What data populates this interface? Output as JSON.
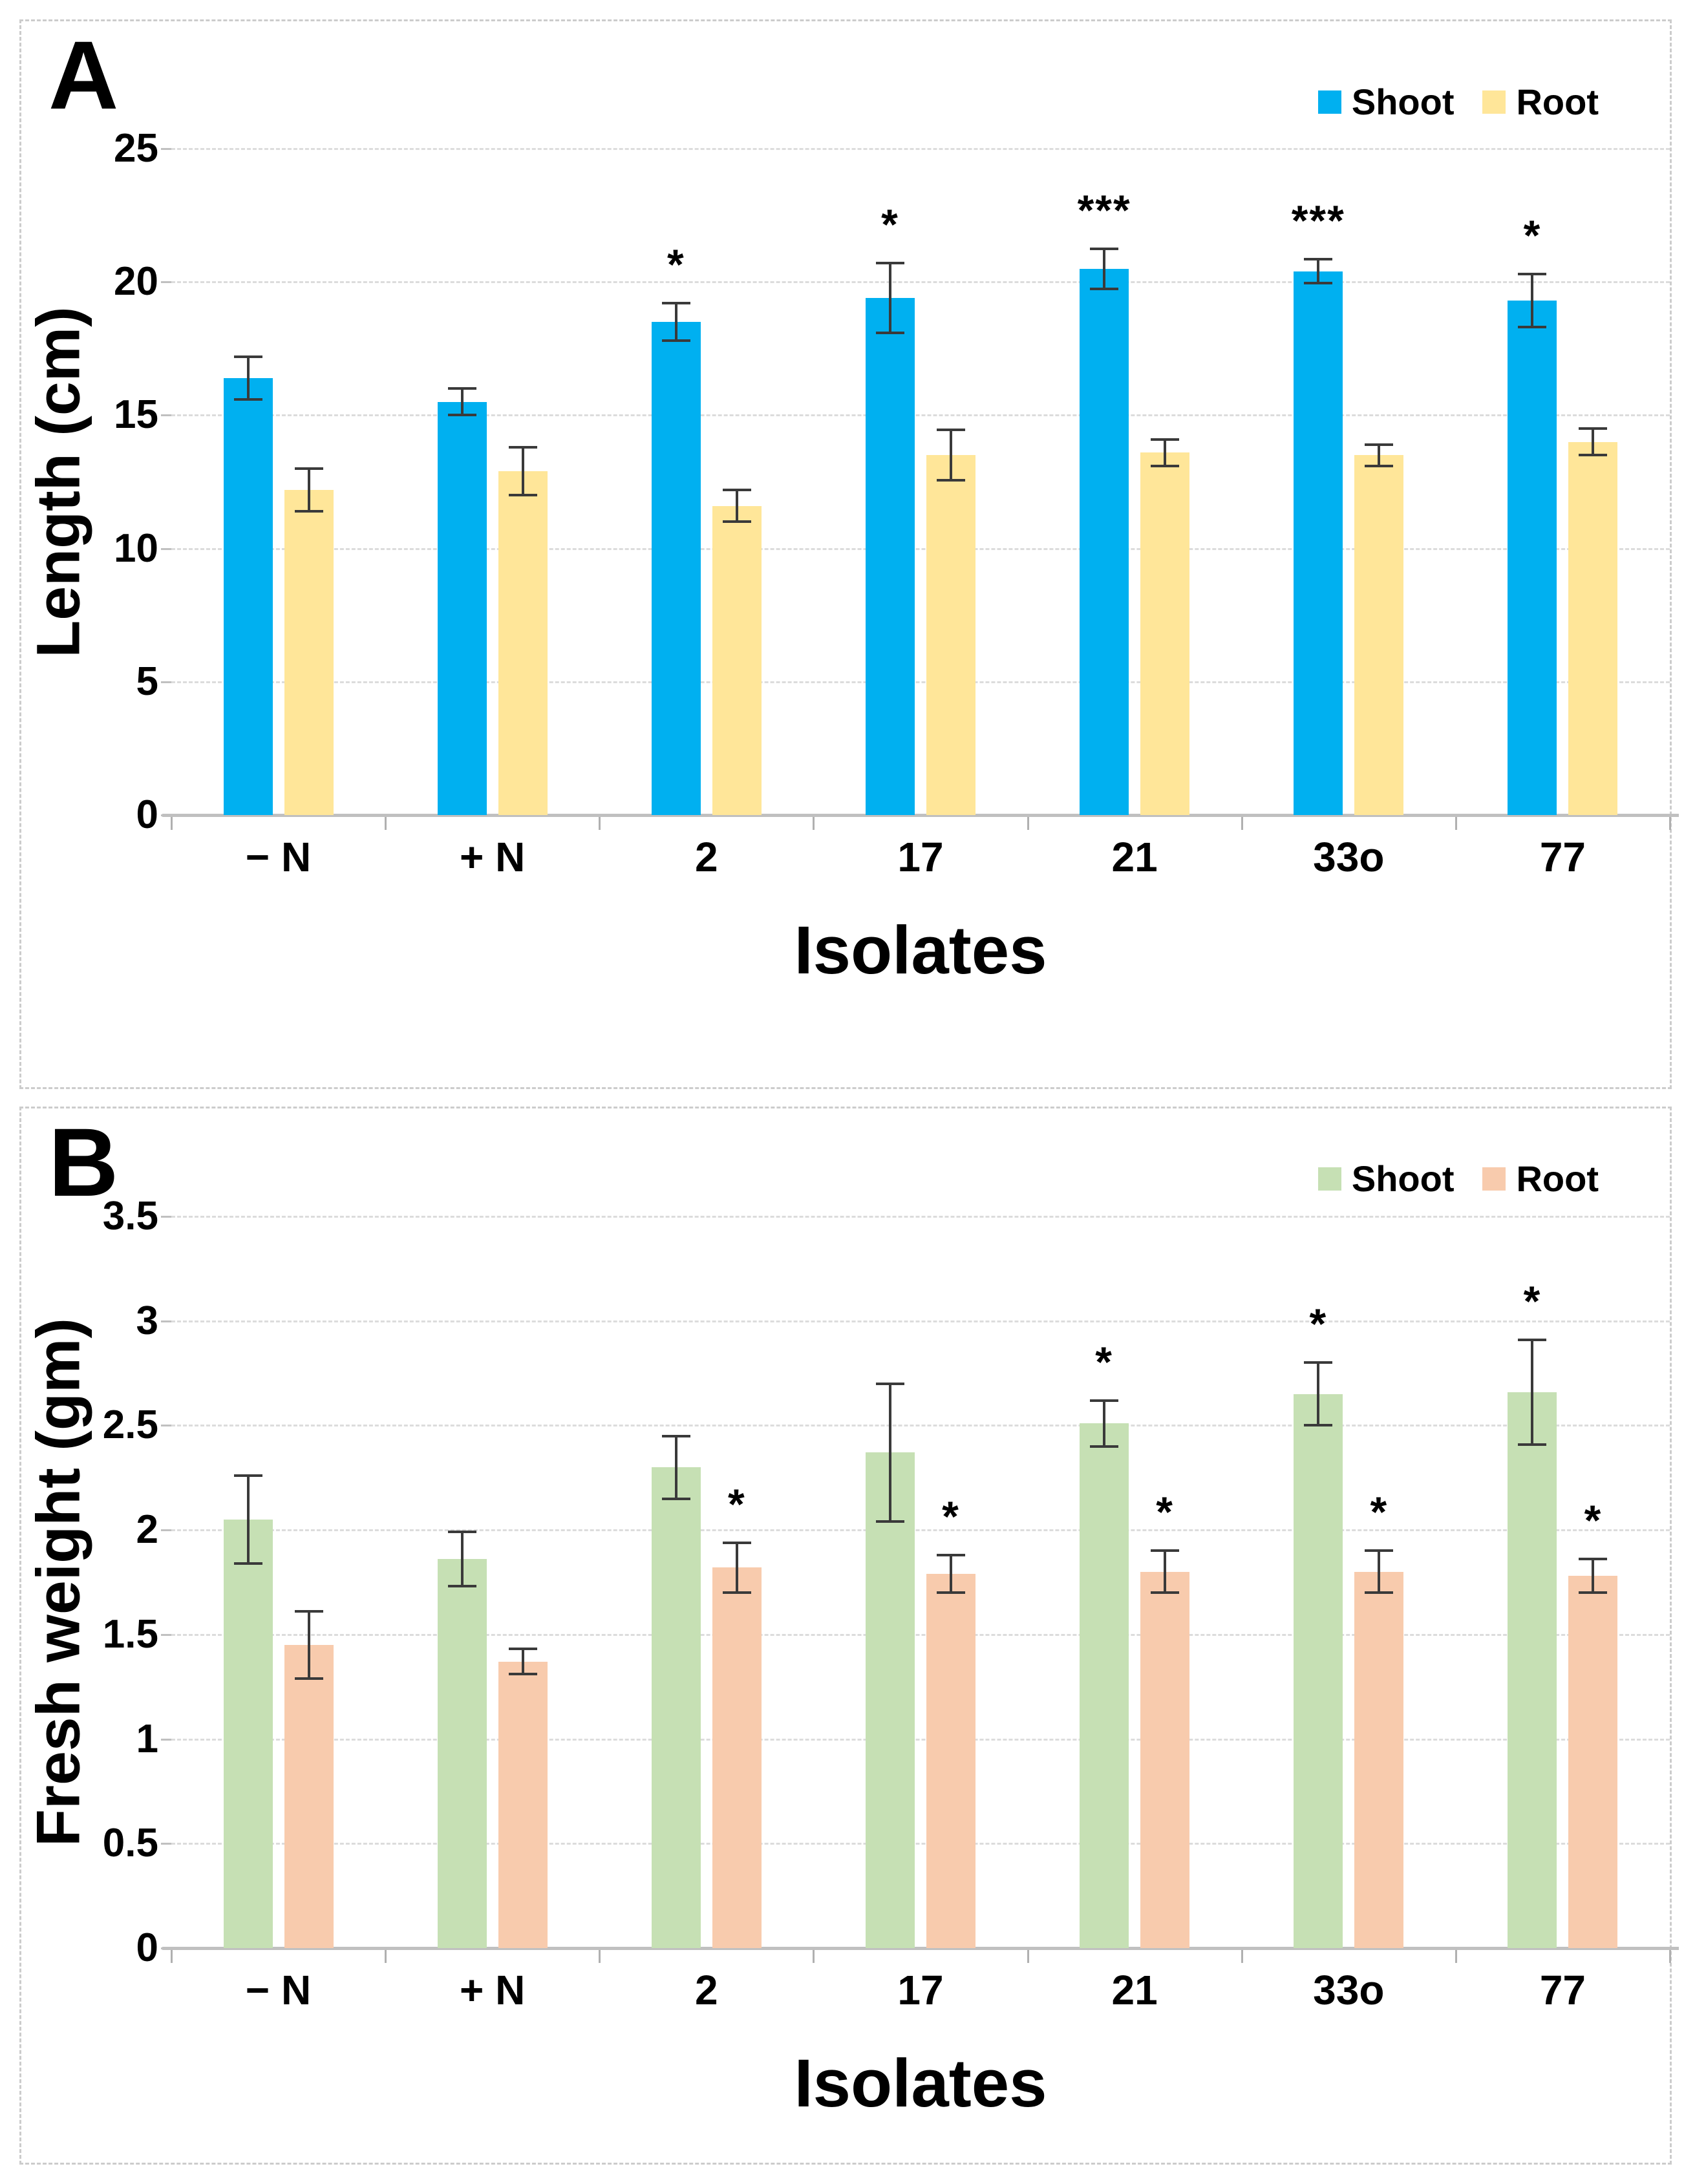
{
  "chart_data": [
    {
      "type": "bar",
      "panel": "A",
      "ylabel": "Length (cm)",
      "xlabel": "Isolates",
      "ylim": [
        0,
        25
      ],
      "yticks": [
        0,
        5,
        10,
        15,
        20,
        25
      ],
      "grid": "horizontal-dashed",
      "legend_position": "top-right",
      "categories": [
        "− N",
        "+ N",
        "2",
        "17",
        "21",
        "33o",
        "77"
      ],
      "series": [
        {
          "name": "Shoot",
          "color": "#00B0F0",
          "values": [
            16.4,
            15.5,
            18.5,
            19.4,
            20.5,
            20.4,
            19.3
          ],
          "errors": [
            0.8,
            0.5,
            0.7,
            1.3,
            0.75,
            0.45,
            1.0
          ],
          "significance": [
            "",
            "",
            "*",
            "*",
            "***",
            "***",
            "*"
          ]
        },
        {
          "name": "Root",
          "color": "#FFE699",
          "values": [
            12.2,
            12.9,
            11.6,
            13.5,
            13.6,
            13.5,
            14.0
          ],
          "errors": [
            0.8,
            0.9,
            0.6,
            0.95,
            0.5,
            0.4,
            0.5
          ],
          "significance": [
            "",
            "",
            "",
            "",
            "",
            "",
            ""
          ]
        }
      ]
    },
    {
      "type": "bar",
      "panel": "B",
      "ylabel": "Fresh weight (gm)",
      "xlabel": "Isolates",
      "ylim": [
        0,
        3.5
      ],
      "yticks": [
        0,
        0.5,
        1,
        1.5,
        2,
        2.5,
        3,
        3.5
      ],
      "grid": "horizontal-dashed",
      "legend_position": "top-right",
      "categories": [
        "− N",
        "+ N",
        "2",
        "17",
        "21",
        "33o",
        "77"
      ],
      "series": [
        {
          "name": "Shoot",
          "color": "#C6E0B4",
          "values": [
            2.05,
            1.86,
            2.3,
            2.37,
            2.51,
            2.65,
            2.66
          ],
          "errors": [
            0.21,
            0.13,
            0.15,
            0.33,
            0.11,
            0.15,
            0.25
          ],
          "significance": [
            "",
            "",
            "",
            "",
            "*",
            "*",
            "*"
          ]
        },
        {
          "name": "Root",
          "color": "#F8CBAD",
          "values": [
            1.45,
            1.37,
            1.82,
            1.79,
            1.8,
            1.8,
            1.78
          ],
          "errors": [
            0.16,
            0.06,
            0.12,
            0.09,
            0.1,
            0.1,
            0.08
          ],
          "significance": [
            "",
            "",
            "*",
            "*",
            "*",
            "*",
            "*"
          ]
        }
      ]
    }
  ]
}
